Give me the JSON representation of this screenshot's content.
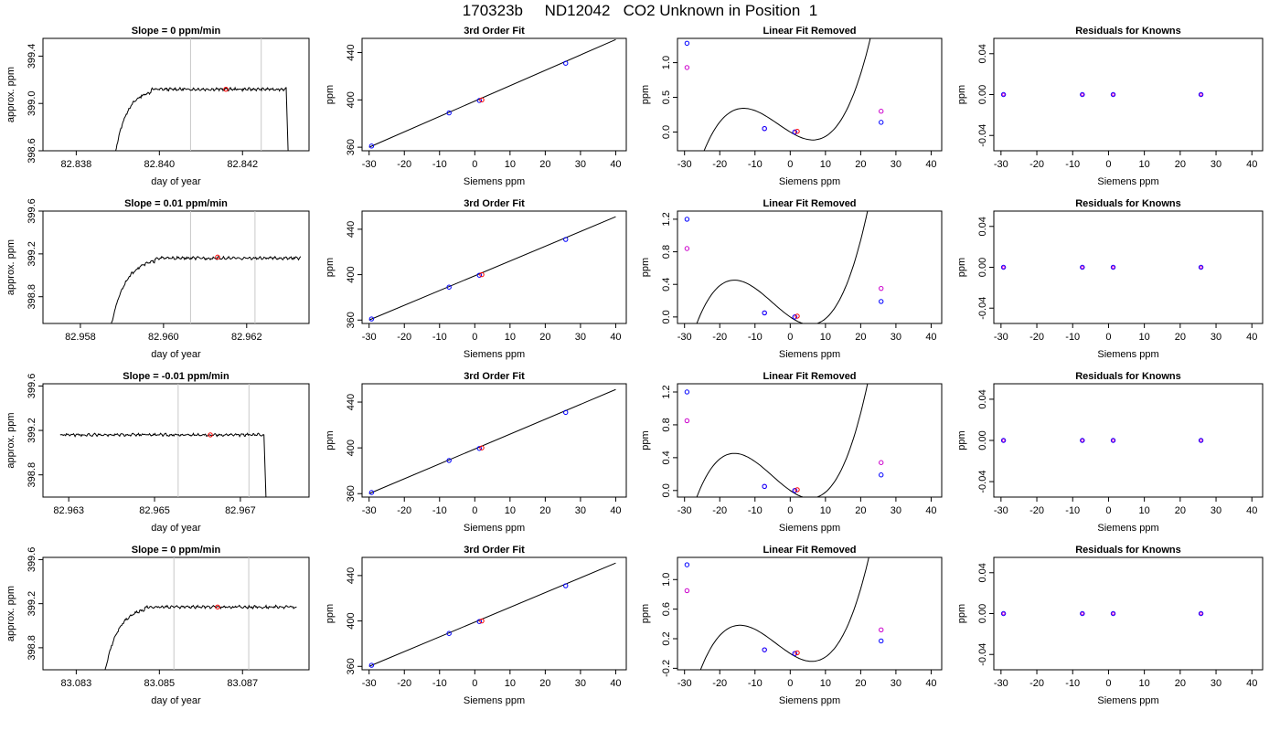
{
  "figure": {
    "title": "170323b     ND12042   CO2 Unknown in Position  1"
  },
  "chart_data": [
    {
      "row": 0,
      "col": 0,
      "type": "line",
      "title": "Slope =  0  ppm/min",
      "xlabel": "day of year",
      "ylabel": "approx. ppm",
      "xlim": [
        82.8372,
        82.8436
      ],
      "ylim": [
        398.6,
        399.55
      ],
      "xticks": [
        82.838,
        82.84,
        82.842
      ],
      "xticklabels": [
        "82.838",
        "82.840",
        "82.842"
      ],
      "yticks": [
        398.6,
        399.0,
        399.4
      ],
      "yticklabels": [
        "398.6",
        "399.0",
        "399.4"
      ],
      "trace": {
        "x_start": 82.8389,
        "x_rise_end": 82.8394,
        "x_end": 82.84305,
        "x_drop": 82.8431,
        "base": 398.6,
        "plateau": 399.12
      },
      "vlines": [
        82.84075,
        82.84245
      ],
      "marker": {
        "x": 82.8416,
        "y": 399.12
      }
    },
    {
      "row": 0,
      "col": 1,
      "type": "scatter",
      "title": "3rd Order Fit",
      "xlabel": "Siemens ppm",
      "ylabel": "ppm",
      "xlim": [
        -32,
        43
      ],
      "ylim": [
        357,
        452
      ],
      "xticks": [
        -30,
        -20,
        -10,
        0,
        10,
        20,
        30,
        40
      ],
      "xticklabels": [
        "-30",
        "-20",
        "-10",
        "0",
        "10",
        "20",
        "30",
        "40"
      ],
      "yticks": [
        360,
        400,
        440
      ],
      "yticklabels": [
        "360",
        "400",
        "440"
      ],
      "fit_line": {
        "x": [
          -30,
          40
        ],
        "y": [
          360,
          451
        ]
      },
      "points": [
        {
          "x": -29.3,
          "y": 361
        },
        {
          "x": -7.3,
          "y": 389
        },
        {
          "x": 1.3,
          "y": 399.5
        },
        {
          "x": 25.8,
          "y": 431
        }
      ],
      "unknown": {
        "x": 2,
        "y": 400
      }
    },
    {
      "row": 0,
      "col": 2,
      "type": "scatter",
      "title": "Linear Fit Removed",
      "xlabel": "Siemens ppm",
      "ylabel": "ppm",
      "xlim": [
        -32,
        43
      ],
      "ylim": [
        -0.27,
        1.35
      ],
      "xticks": [
        -30,
        -20,
        -10,
        0,
        10,
        20,
        30,
        40
      ],
      "xticklabels": [
        "-30",
        "-20",
        "-10",
        "0",
        "10",
        "20",
        "30",
        "40"
      ],
      "yticks": [
        0,
        0.5,
        1.0
      ],
      "yticklabels": [
        "0.0",
        "0.5",
        "1.0"
      ],
      "curve": {
        "type": "cubic",
        "coeffs": [
          0.00012,
          0.00123,
          -0.0306,
          0
        ],
        "xrange": [
          -29.5,
          40.5
        ]
      },
      "blue_points": [
        {
          "x": -29.3,
          "y": 1.28
        },
        {
          "x": -7.3,
          "y": 0.05
        },
        {
          "x": 1.3,
          "y": 0
        },
        {
          "x": 25.8,
          "y": 0.14
        }
      ],
      "magenta_points": [
        {
          "x": -29.3,
          "y": 0.93
        },
        {
          "x": -7.3,
          "y": 0.05
        },
        {
          "x": 1.3,
          "y": 0
        },
        {
          "x": 25.8,
          "y": 0.3
        }
      ],
      "unknown": {
        "x": 2,
        "y": 0.01
      }
    },
    {
      "row": 0,
      "col": 3,
      "type": "scatter",
      "title": "Residuals for Knowns",
      "xlabel": "Siemens ppm",
      "ylabel": "ppm",
      "xlim": [
        -32,
        43
      ],
      "ylim": [
        -0.055,
        0.055
      ],
      "xticks": [
        -30,
        -20,
        -10,
        0,
        10,
        20,
        30,
        40
      ],
      "xticklabels": [
        "-30",
        "-20",
        "-10",
        "0",
        "10",
        "20",
        "30",
        "40"
      ],
      "yticks": [
        -0.04,
        0,
        0.04
      ],
      "yticklabels": [
        "-0.04",
        "0.00",
        "0.04"
      ],
      "points": [
        {
          "x": -29.3,
          "y": 0
        },
        {
          "x": -7.3,
          "y": 0
        },
        {
          "x": 1.3,
          "y": 0
        },
        {
          "x": 25.8,
          "y": 0
        }
      ]
    },
    {
      "row": 1,
      "col": 0,
      "type": "line",
      "title": "Slope =  0.01  ppm/min",
      "xlabel": "day of year",
      "ylabel": "approx. ppm",
      "xlim": [
        82.9571,
        82.9635
      ],
      "ylim": [
        398.55,
        399.6
      ],
      "xticks": [
        82.958,
        82.96,
        82.962
      ],
      "xticklabels": [
        "82.958",
        "82.960",
        "82.962"
      ],
      "yticks": [
        398.8,
        399.2,
        399.6
      ],
      "yticklabels": [
        "398.8",
        "399.2",
        "399.6"
      ],
      "trace": {
        "x_start": 82.9587,
        "x_rise_end": 82.9593,
        "x_end": 82.9633,
        "x_drop": null,
        "base": 398.55,
        "plateau": 399.16
      },
      "vlines": [
        82.96065,
        82.9622
      ],
      "marker": {
        "x": 82.9613,
        "y": 399.17
      }
    },
    {
      "row": 1,
      "col": 1,
      "type": "scatter",
      "title": "3rd Order Fit",
      "xlabel": "Siemens ppm",
      "ylabel": "ppm",
      "xlim": [
        -32,
        43
      ],
      "ylim": [
        357,
        456
      ],
      "xticks": [
        -30,
        -20,
        -10,
        0,
        10,
        20,
        30,
        40
      ],
      "xticklabels": [
        "-30",
        "-20",
        "-10",
        "0",
        "10",
        "20",
        "30",
        "40"
      ],
      "yticks": [
        360,
        400,
        440
      ],
      "yticklabels": [
        "360",
        "400",
        "440"
      ],
      "fit_line": {
        "x": [
          -30,
          40
        ],
        "y": [
          360,
          451
        ]
      },
      "points": [
        {
          "x": -29.3,
          "y": 361
        },
        {
          "x": -7.3,
          "y": 389
        },
        {
          "x": 1.3,
          "y": 399.5
        },
        {
          "x": 25.8,
          "y": 431
        }
      ],
      "unknown": {
        "x": 2,
        "y": 400
      }
    },
    {
      "row": 1,
      "col": 2,
      "type": "scatter",
      "title": "Linear Fit Removed",
      "xlabel": "Siemens ppm",
      "ylabel": "ppm",
      "xlim": [
        -32,
        43
      ],
      "ylim": [
        -0.08,
        1.3
      ],
      "xticks": [
        -30,
        -20,
        -10,
        0,
        10,
        20,
        30,
        40
      ],
      "xticklabels": [
        "-30",
        "-20",
        "-10",
        "0",
        "10",
        "20",
        "30",
        "40"
      ],
      "yticks": [
        0,
        0.4,
        0.8,
        1.2
      ],
      "yticklabels": [
        "0.0",
        "0.4",
        "0.8",
        "1.2"
      ],
      "curve": {
        "type": "cubic",
        "coeffs": [
          0.000109,
          0.00166,
          -0.0296,
          0
        ],
        "xrange": [
          -29.5,
          40.5
        ]
      },
      "blue_points": [
        {
          "x": -29.3,
          "y": 1.2
        },
        {
          "x": -7.3,
          "y": 0.05
        },
        {
          "x": 1.3,
          "y": 0
        },
        {
          "x": 25.8,
          "y": 0.19
        }
      ],
      "magenta_points": [
        {
          "x": -29.3,
          "y": 0.84
        },
        {
          "x": -7.3,
          "y": 0.05
        },
        {
          "x": 1.3,
          "y": 0
        },
        {
          "x": 25.8,
          "y": 0.35
        }
      ],
      "unknown": {
        "x": 2,
        "y": 0.01
      }
    },
    {
      "row": 1,
      "col": 3,
      "type": "scatter",
      "title": "Residuals for Knowns",
      "xlabel": "Siemens ppm",
      "ylabel": "ppm",
      "xlim": [
        -32,
        43
      ],
      "ylim": [
        -0.055,
        0.055
      ],
      "xticks": [
        -30,
        -20,
        -10,
        0,
        10,
        20,
        30,
        40
      ],
      "xticklabels": [
        "-30",
        "-20",
        "-10",
        "0",
        "10",
        "20",
        "30",
        "40"
      ],
      "yticks": [
        -0.04,
        0,
        0.04
      ],
      "yticklabels": [
        "-0.04",
        "0.00",
        "0.04"
      ],
      "points": [
        {
          "x": -29.3,
          "y": 0
        },
        {
          "x": -7.3,
          "y": 0
        },
        {
          "x": 1.3,
          "y": 0
        },
        {
          "x": 25.8,
          "y": 0
        }
      ]
    },
    {
      "row": 2,
      "col": 0,
      "type": "line",
      "title": "Slope =  -0.01  ppm/min",
      "xlabel": "day of year",
      "ylabel": "approx. ppm",
      "xlim": [
        82.9624,
        82.9686
      ],
      "ylim": [
        398.6,
        399.62
      ],
      "xticks": [
        82.963,
        82.965,
        82.967
      ],
      "xticklabels": [
        "82.963",
        "82.965",
        "82.967"
      ],
      "yticks": [
        398.8,
        399.2,
        399.6
      ],
      "yticklabels": [
        "398.8",
        "399.2",
        "399.6"
      ],
      "trace": {
        "x_start": 82.9628,
        "x_rise_end": 82.9628,
        "x_end": 82.96755,
        "x_drop": 82.9676,
        "base": 398.6,
        "plateau": 399.16
      },
      "vlines": [
        82.96555,
        82.9672
      ],
      "marker": {
        "x": 82.9663,
        "y": 399.16
      }
    },
    {
      "row": 2,
      "col": 1,
      "type": "scatter",
      "title": "3rd Order Fit",
      "xlabel": "Siemens ppm",
      "ylabel": "ppm",
      "xlim": [
        -32,
        43
      ],
      "ylim": [
        357,
        456
      ],
      "xticks": [
        -30,
        -20,
        -10,
        0,
        10,
        20,
        30,
        40
      ],
      "xticklabels": [
        "-30",
        "-20",
        "-10",
        "0",
        "10",
        "20",
        "30",
        "40"
      ],
      "yticks": [
        360,
        400,
        440
      ],
      "yticklabels": [
        "360",
        "400",
        "440"
      ],
      "fit_line": {
        "x": [
          -30,
          40
        ],
        "y": [
          360,
          451
        ]
      },
      "points": [
        {
          "x": -29.3,
          "y": 361
        },
        {
          "x": -7.3,
          "y": 389
        },
        {
          "x": 1.3,
          "y": 399.5
        },
        {
          "x": 25.8,
          "y": 431
        }
      ],
      "unknown": {
        "x": 2,
        "y": 400
      }
    },
    {
      "row": 2,
      "col": 2,
      "type": "scatter",
      "title": "Linear Fit Removed",
      "xlabel": "Siemens ppm",
      "ylabel": "ppm",
      "xlim": [
        -32,
        43
      ],
      "ylim": [
        -0.08,
        1.3
      ],
      "xticks": [
        -30,
        -20,
        -10,
        0,
        10,
        20,
        30,
        40
      ],
      "xticklabels": [
        "-30",
        "-20",
        "-10",
        "0",
        "10",
        "20",
        "30",
        "40"
      ],
      "yticks": [
        0,
        0.4,
        0.8,
        1.2
      ],
      "yticklabels": [
        "0.0",
        "0.4",
        "0.8",
        "1.2"
      ],
      "curve": {
        "type": "cubic",
        "coeffs": [
          0.000109,
          0.00166,
          -0.0296,
          0
        ],
        "xrange": [
          -29.5,
          40.5
        ]
      },
      "blue_points": [
        {
          "x": -29.3,
          "y": 1.2
        },
        {
          "x": -7.3,
          "y": 0.05
        },
        {
          "x": 1.3,
          "y": 0
        },
        {
          "x": 25.8,
          "y": 0.19
        }
      ],
      "magenta_points": [
        {
          "x": -29.3,
          "y": 0.85
        },
        {
          "x": -7.3,
          "y": 0.05
        },
        {
          "x": 1.3,
          "y": 0
        },
        {
          "x": 25.8,
          "y": 0.34
        }
      ],
      "unknown": {
        "x": 2,
        "y": 0.01
      }
    },
    {
      "row": 2,
      "col": 3,
      "type": "scatter",
      "title": "Residuals for Knowns",
      "xlabel": "Siemens ppm",
      "ylabel": "ppm",
      "xlim": [
        -32,
        43
      ],
      "ylim": [
        -0.055,
        0.055
      ],
      "xticks": [
        -30,
        -20,
        -10,
        0,
        10,
        20,
        30,
        40
      ],
      "xticklabels": [
        "-30",
        "-20",
        "-10",
        "0",
        "10",
        "20",
        "30",
        "40"
      ],
      "yticks": [
        -0.04,
        0,
        0.04
      ],
      "yticklabels": [
        "-0.04",
        "0.00",
        "0.04"
      ],
      "points": [
        {
          "x": -29.3,
          "y": 0
        },
        {
          "x": -7.3,
          "y": 0
        },
        {
          "x": 1.3,
          "y": 0
        },
        {
          "x": 25.8,
          "y": 0
        }
      ]
    },
    {
      "row": 3,
      "col": 0,
      "type": "line",
      "title": "Slope =  0  ppm/min",
      "xlabel": "day of year",
      "ylabel": "approx. ppm",
      "xlim": [
        83.0822,
        83.0886
      ],
      "ylim": [
        398.6,
        399.62
      ],
      "xticks": [
        83.083,
        83.085,
        83.087
      ],
      "xticklabels": [
        "83.083",
        "83.085",
        "83.087"
      ],
      "yticks": [
        398.8,
        399.2,
        399.6
      ],
      "yticklabels": [
        "398.8",
        "399.2",
        "399.6"
      ],
      "trace": {
        "x_start": 83.08365,
        "x_rise_end": 83.0842,
        "x_end": 83.0883,
        "x_drop": null,
        "base": 398.6,
        "plateau": 399.17
      },
      "vlines": [
        83.08535,
        83.08715
      ],
      "marker": {
        "x": 83.0864,
        "y": 399.17
      }
    },
    {
      "row": 3,
      "col": 1,
      "type": "scatter",
      "title": "3rd Order Fit",
      "xlabel": "Siemens ppm",
      "ylabel": "ppm",
      "xlim": [
        -32,
        43
      ],
      "ylim": [
        357,
        456
      ],
      "xticks": [
        -30,
        -20,
        -10,
        0,
        10,
        20,
        30,
        40
      ],
      "xticklabels": [
        "-30",
        "-20",
        "-10",
        "0",
        "10",
        "20",
        "30",
        "40"
      ],
      "yticks": [
        360,
        400,
        440
      ],
      "yticklabels": [
        "360",
        "400",
        "440"
      ],
      "fit_line": {
        "x": [
          -30,
          40
        ],
        "y": [
          360,
          451
        ]
      },
      "points": [
        {
          "x": -29.3,
          "y": 361
        },
        {
          "x": -7.3,
          "y": 389
        },
        {
          "x": 1.3,
          "y": 399.5
        },
        {
          "x": 25.8,
          "y": 431
        }
      ],
      "unknown": {
        "x": 2,
        "y": 400
      }
    },
    {
      "row": 3,
      "col": 2,
      "type": "scatter",
      "title": "Linear Fit Removed",
      "xlabel": "Siemens ppm",
      "ylabel": "ppm",
      "xlim": [
        -32,
        43
      ],
      "ylim": [
        -0.22,
        1.3
      ],
      "xticks": [
        -30,
        -20,
        -10,
        0,
        10,
        20,
        30,
        40
      ],
      "xticklabels": [
        "-30",
        "-20",
        "-10",
        "0",
        "10",
        "20",
        "30",
        "40"
      ],
      "yticks": [
        -0.2,
        0.2,
        0.6,
        1.0
      ],
      "yticklabels": [
        "-0.2",
        "0.2",
        "0.6",
        "1.0"
      ],
      "curve": {
        "type": "cubic",
        "coeffs": [
          0.000115,
          0.0014,
          -0.0302,
          0
        ],
        "xrange": [
          -29.5,
          40.5
        ]
      },
      "blue_points": [
        {
          "x": -29.3,
          "y": 1.2
        },
        {
          "x": -7.3,
          "y": 0.05
        },
        {
          "x": 1.3,
          "y": 0
        },
        {
          "x": 25.8,
          "y": 0.17
        }
      ],
      "magenta_points": [
        {
          "x": -29.3,
          "y": 0.85
        },
        {
          "x": -7.3,
          "y": 0.05
        },
        {
          "x": 1.3,
          "y": 0
        },
        {
          "x": 25.8,
          "y": 0.32
        }
      ],
      "unknown": {
        "x": 2,
        "y": 0.01
      }
    },
    {
      "row": 3,
      "col": 3,
      "type": "scatter",
      "title": "Residuals for Knowns",
      "xlabel": "Siemens ppm",
      "ylabel": "ppm",
      "xlim": [
        -32,
        43
      ],
      "ylim": [
        -0.055,
        0.055
      ],
      "xticks": [
        -30,
        -20,
        -10,
        0,
        10,
        20,
        30,
        40
      ],
      "xticklabels": [
        "-30",
        "-20",
        "-10",
        "0",
        "10",
        "20",
        "30",
        "40"
      ],
      "yticks": [
        -0.04,
        0,
        0.04
      ],
      "yticklabels": [
        "-0.04",
        "0.00",
        "0.04"
      ],
      "points": [
        {
          "x": -29.3,
          "y": 0
        },
        {
          "x": -7.3,
          "y": 0
        },
        {
          "x": 1.3,
          "y": 0
        },
        {
          "x": 25.8,
          "y": 0
        }
      ]
    }
  ],
  "colors": {
    "axis": "#000000",
    "trace": "#000000",
    "vline": "#c8c8c8",
    "blue": "#0000ff",
    "magenta": "#cc00cc",
    "unknown": "#ff0000"
  }
}
